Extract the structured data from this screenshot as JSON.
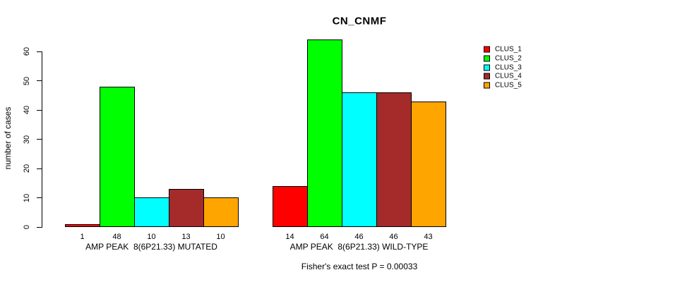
{
  "chart_data": {
    "type": "bar",
    "title": "CN_CNMF",
    "ylabel": "number of cases",
    "xlabel": "",
    "ylim": [
      0,
      60
    ],
    "yticks": [
      0,
      10,
      20,
      30,
      40,
      50,
      60
    ],
    "grid": false,
    "legend_position": "right",
    "clusters": [
      {
        "name": "CLUS_1",
        "color": "#FF0000"
      },
      {
        "name": "CLUS_2",
        "color": "#00FF00"
      },
      {
        "name": "CLUS_3",
        "color": "#00FFFF"
      },
      {
        "name": "CLUS_4",
        "color": "#A52A2A"
      },
      {
        "name": "CLUS_5",
        "color": "#FFA500"
      }
    ],
    "categories": [
      "AMP PEAK  8(6P21.33) MUTATED",
      "AMP PEAK  8(6P21.33) WILD-TYPE"
    ],
    "series": [
      {
        "name": "CLUS_1",
        "values": [
          1,
          14
        ]
      },
      {
        "name": "CLUS_2",
        "values": [
          48,
          64
        ]
      },
      {
        "name": "CLUS_3",
        "values": [
          10,
          46
        ]
      },
      {
        "name": "CLUS_4",
        "values": [
          13,
          46
        ]
      },
      {
        "name": "CLUS_5",
        "values": [
          10,
          43
        ]
      }
    ],
    "groups": [
      {
        "label": "AMP PEAK  8(6P21.33) MUTATED",
        "values": [
          1,
          48,
          10,
          13,
          10
        ]
      },
      {
        "label": "AMP PEAK  8(6P21.33) WILD-TYPE",
        "values": [
          14,
          64,
          46,
          46,
          43
        ]
      }
    ],
    "footnote": "Fisher's exact test P = 0.00033"
  }
}
